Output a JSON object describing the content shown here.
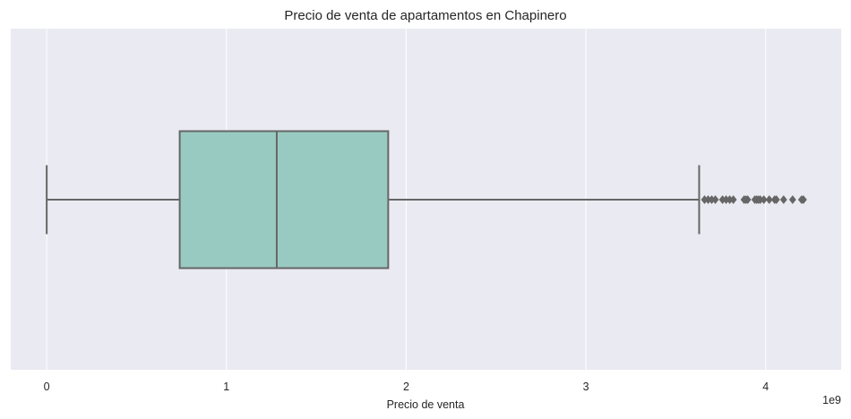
{
  "chart_data": {
    "type": "boxplot",
    "orientation": "horizontal",
    "title": "Precio de venta de apartamentos en Chapinero",
    "xlabel": "Precio de venta",
    "ylabel": "",
    "x_offset_label": "1e9",
    "xlim": [
      -0.2,
      4.42
    ],
    "x_ticks": [
      0,
      1,
      2,
      3,
      4
    ],
    "x_tick_labels": [
      "0",
      "1",
      "2",
      "3",
      "4"
    ],
    "grid": true,
    "series": [
      {
        "whisker_low": 0.0,
        "q1": 0.74,
        "median": 1.28,
        "q3": 1.9,
        "whisker_high": 3.63,
        "outliers": [
          3.66,
          3.68,
          3.7,
          3.72,
          3.76,
          3.78,
          3.8,
          3.82,
          3.88,
          3.89,
          3.9,
          3.94,
          3.95,
          3.96,
          3.97,
          3.99,
          4.02,
          4.05,
          4.06,
          4.1,
          4.15,
          4.2,
          4.21
        ]
      }
    ],
    "colors": {
      "box_fill": "#98cac1",
      "line": "#666666",
      "plot_background": "#eaeaf2",
      "grid": "#ffffff"
    }
  }
}
